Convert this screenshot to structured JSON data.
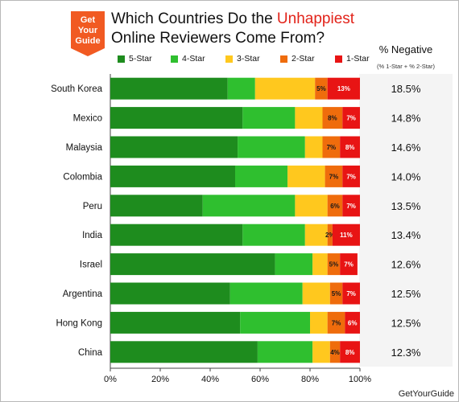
{
  "logo": {
    "line1": "Get",
    "line2": "Your",
    "line3": "Guide"
  },
  "title": {
    "part1": "Which Countries Do the ",
    "highlight": "Unhappiest",
    "line2": "Online Reviewers Come From?"
  },
  "negative_header": {
    "label": "% Negative",
    "sublabel": "(% 1-Star + % 2-Star)"
  },
  "watermark": "GetYourGuide",
  "colors": {
    "five": "#1e8c1e",
    "four": "#2fbf2f",
    "three": "#ffc81e",
    "two": "#ef6c0c",
    "one": "#e81414",
    "highlight": "#e2231a",
    "logo": "#f15a22"
  },
  "chart_data": {
    "type": "bar",
    "orientation": "horizontal",
    "stacked": true,
    "percent": true,
    "categories": [
      "South Korea",
      "Mexico",
      "Malaysia",
      "Colombia",
      "Peru",
      "India",
      "Israel",
      "Argentina",
      "Hong Kong",
      "China"
    ],
    "series": [
      {
        "name": "5-Star",
        "values": [
          47,
          53,
          51,
          50,
          37,
          53,
          66,
          48,
          52,
          59
        ]
      },
      {
        "name": "4-Star",
        "values": [
          11,
          21,
          27,
          21,
          37,
          25,
          15,
          29,
          28,
          22
        ]
      },
      {
        "name": "3-Star",
        "values": [
          24,
          11,
          7,
          15,
          13,
          9,
          6,
          11,
          7,
          7
        ]
      },
      {
        "name": "2-Star",
        "values": [
          5,
          8,
          7,
          7,
          6,
          2,
          5,
          5,
          7,
          4
        ]
      },
      {
        "name": "1-Star",
        "values": [
          13,
          7,
          8,
          7,
          7,
          11,
          7,
          7,
          6,
          8
        ]
      }
    ],
    "segment_labels": [
      [
        "",
        "",
        "",
        "5%",
        "13%"
      ],
      [
        "",
        "",
        "",
        "8%",
        "7%"
      ],
      [
        "",
        "",
        "",
        "7%",
        "8%"
      ],
      [
        "",
        "",
        "",
        "7%",
        "7%"
      ],
      [
        "",
        "",
        "",
        "6%",
        "7%"
      ],
      [
        "",
        "",
        "",
        "2%",
        "11%"
      ],
      [
        "",
        "",
        "",
        "5%",
        "7%"
      ],
      [
        "",
        "",
        "",
        "5%",
        "7%"
      ],
      [
        "",
        "",
        "",
        "7%",
        "6%"
      ],
      [
        "",
        "",
        "",
        "4%",
        "8%"
      ]
    ],
    "negative": [
      "18.5%",
      "14.8%",
      "14.6%",
      "14.0%",
      "13.5%",
      "13.4%",
      "12.6%",
      "12.5%",
      "12.5%",
      "12.3%"
    ],
    "x_ticks": [
      "0%",
      "20%",
      "40%",
      "60%",
      "80%",
      "100%"
    ],
    "xlim": [
      0,
      100
    ],
    "legend_position": "top"
  }
}
